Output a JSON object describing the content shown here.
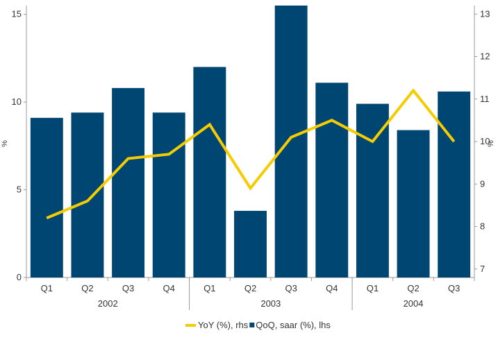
{
  "chart_data": {
    "type": "bar",
    "categories": [
      "Q1",
      "Q2",
      "Q3",
      "Q4",
      "Q1",
      "Q2",
      "Q3",
      "Q4",
      "Q1",
      "Q2",
      "Q3"
    ],
    "year_labels": [
      {
        "label": "2002",
        "from": 0,
        "to": 3
      },
      {
        "label": "2003",
        "from": 4,
        "to": 7
      },
      {
        "label": "2004",
        "from": 8,
        "to": 10
      }
    ],
    "series": [
      {
        "name": "QoQ, saar (%), lhs",
        "type": "bar",
        "axis": "left",
        "color": "#004673",
        "values": [
          9.1,
          9.4,
          10.8,
          9.4,
          12.0,
          3.8,
          15.5,
          11.1,
          9.9,
          8.4,
          10.6
        ]
      },
      {
        "name": "YoY (%), rhs",
        "type": "line",
        "axis": "right",
        "color": "#f5cc00",
        "values": [
          8.2,
          8.6,
          9.6,
          9.7,
          10.4,
          8.9,
          10.1,
          10.5,
          10.0,
          11.2,
          10.0
        ]
      }
    ],
    "ylabel_left": "%",
    "ylabel_right": "%",
    "ylim_left": [
      0,
      15.5
    ],
    "yticks_left": [
      0,
      5,
      10,
      15
    ],
    "ylim_right": [
      6.8,
      13.2
    ],
    "yticks_right": [
      7,
      8,
      9,
      10,
      11,
      12,
      13
    ],
    "grid": false,
    "legend_position": "bottom"
  }
}
